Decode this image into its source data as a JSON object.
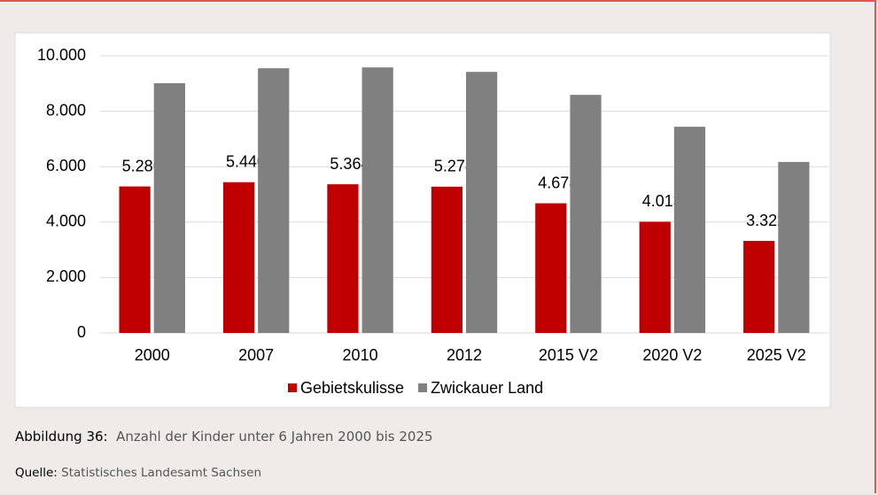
{
  "chart_data": {
    "type": "bar",
    "categories": [
      "2000",
      "2007",
      "2010",
      "2012",
      "2015 V2",
      "2020 V2",
      "2025 V2"
    ],
    "series": [
      {
        "name": "Gebietskulisse",
        "color": "#c00000",
        "values": [
          5286,
          5440,
          5364,
          5278,
          4678,
          4013,
          3322
        ],
        "value_labels": [
          "5.286",
          "5.440",
          "5.364",
          "5.278",
          "4.678",
          "4.013",
          "3.322"
        ]
      },
      {
        "name": "Zwickauer Land",
        "color": "#808080",
        "values": [
          9010,
          9550,
          9580,
          9420,
          8590,
          7440,
          6170
        ]
      }
    ],
    "ylim": [
      0,
      10000
    ],
    "yticks": [
      0,
      {
        "value": 2000,
        "label": "2.000"
      },
      {
        "value": 4000,
        "label": "4.000"
      },
      {
        "value": 6000,
        "label": "6.000"
      },
      {
        "value": 8000,
        "label": "8.000"
      },
      {
        "value": 10000,
        "label": "10.000"
      }
    ],
    "grid": true,
    "legend": "bottom"
  },
  "caption": {
    "label": "Abbildung 36:",
    "text": "Anzahl der Kinder unter 6 Jahren 2000 bis 2025"
  },
  "source": {
    "label": "Quelle:",
    "text": "Statistisches Landesamt Sachsen"
  }
}
